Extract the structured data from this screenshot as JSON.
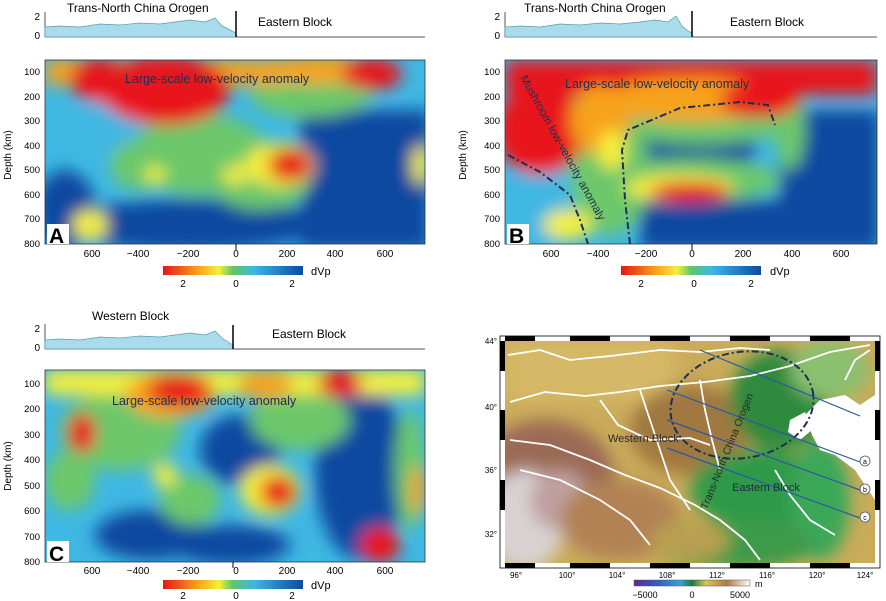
{
  "figure": {
    "panels": [
      {
        "letter": "A",
        "elev_left": "Trans-North China Orogen",
        "elev_right": "Eastern Block",
        "elev_ticks": [
          "2",
          "0"
        ],
        "annotation": "Large-scale low-velocity anomaly",
        "ylabel": "Depth (km)",
        "depth_ticks": [
          "100",
          "200",
          "300",
          "400",
          "500",
          "600",
          "700",
          "800"
        ],
        "x_ticks": [
          "600",
          "−400",
          "−200",
          "0",
          "200",
          "400",
          "600"
        ],
        "colorbar": {
          "label": "dVp",
          "ticks": [
            "2",
            "0",
            "2"
          ]
        }
      },
      {
        "letter": "B",
        "elev_left": "Trans-North China Orogen",
        "elev_right": "Eastern Block",
        "elev_ticks": [
          "2",
          "0"
        ],
        "annotation": "Large-scale low-velocity anomaly",
        "annotation2": "Mushroom low-velocity anomaly",
        "ylabel": "Depth (km)",
        "depth_ticks": [
          "100",
          "200",
          "300",
          "400",
          "500",
          "600",
          "700",
          "800"
        ],
        "x_ticks": [
          "600",
          "−400",
          "−200",
          "0",
          "200",
          "400",
          "600"
        ],
        "colorbar": {
          "label": "dVp",
          "ticks": [
            "2",
            "0",
            "2"
          ]
        }
      },
      {
        "letter": "C",
        "elev_left": "Western Block",
        "elev_right": "Eastern Block",
        "elev_ticks": [
          "2",
          "0"
        ],
        "annotation": "Large-scale low-velocity anomaly",
        "ylabel": "Depth (km)",
        "depth_ticks": [
          "100",
          "200",
          "300",
          "400",
          "500",
          "600",
          "700",
          "800"
        ],
        "x_ticks": [
          "600",
          "−400",
          "−200",
          "0",
          "200",
          "400",
          "600"
        ],
        "colorbar": {
          "label": "dVp",
          "ticks": [
            "2",
            "0",
            "2"
          ]
        }
      }
    ],
    "map": {
      "lat_ticks": [
        "44°",
        "40°",
        "36°",
        "32°"
      ],
      "lon_ticks": [
        "96°",
        "100°",
        "104°",
        "108°",
        "112°",
        "116°",
        "120°",
        "124°"
      ],
      "western_block": "Western Block",
      "eastern_block": "Eastern Block",
      "orogen": "Trans-North China Orogen",
      "profile_markers": [
        "a",
        "b",
        "c"
      ],
      "colorbar": {
        "ticks": [
          "−5000",
          "0",
          "5000"
        ],
        "unit": "m"
      }
    }
  }
}
